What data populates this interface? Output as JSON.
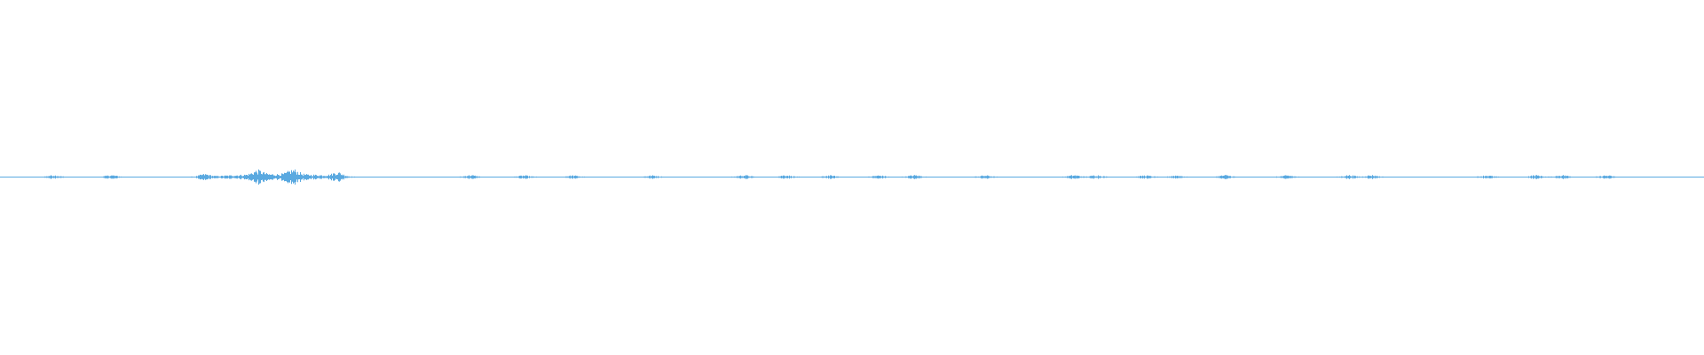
{
  "waveform": {
    "color": "#5aa9e0",
    "background": "#ffffff"
  }
}
